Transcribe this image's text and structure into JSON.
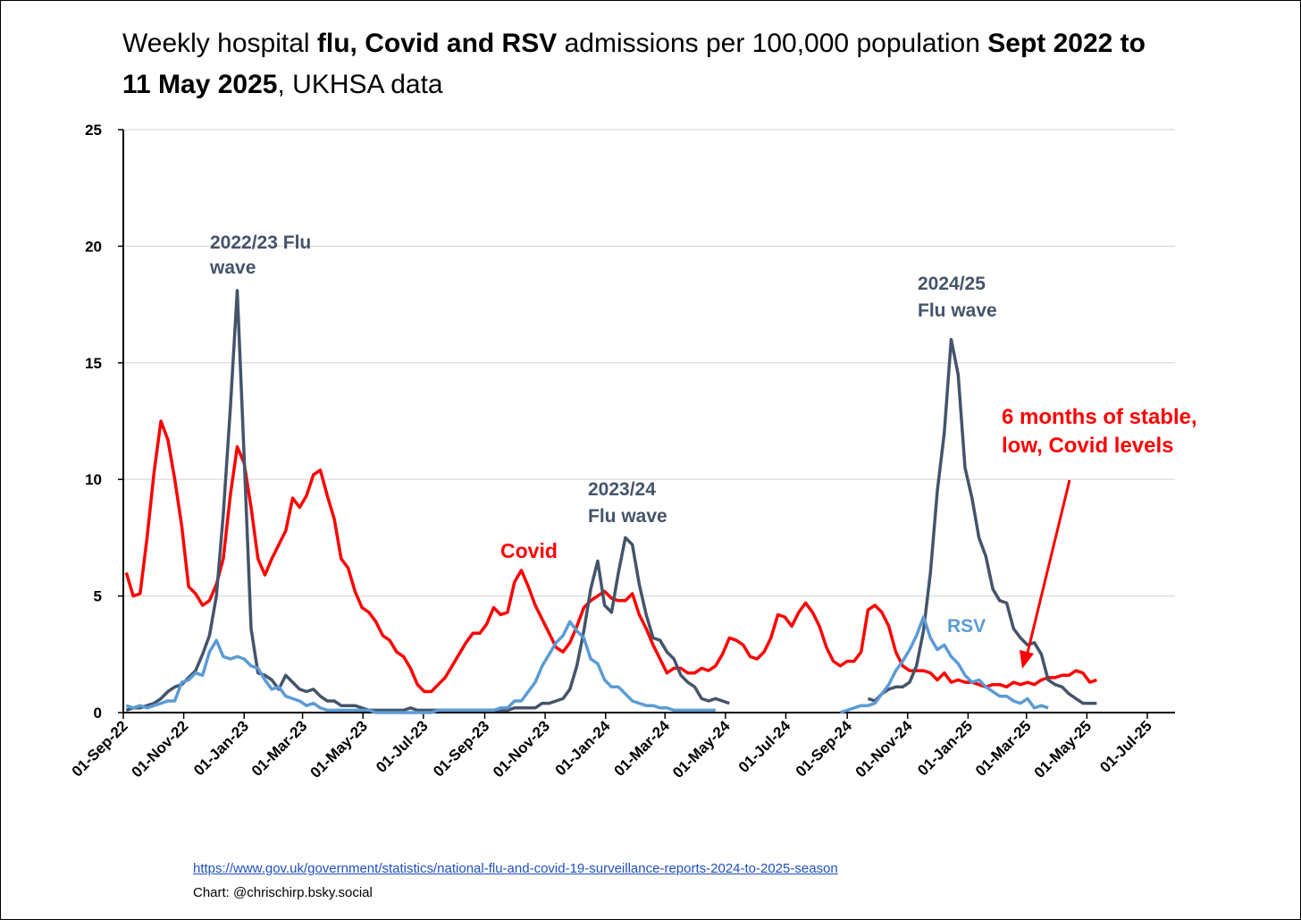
{
  "chart_data": {
    "type": "line",
    "title": [
      "Weekly hospital ",
      "flu, Covid and RSV",
      " admissions per 100,000 population ",
      "Sept 2022 to 11 May 2025",
      ", UKHSA data"
    ],
    "x": [
      "2022-09-04",
      "2022-09-11",
      "2022-09-18",
      "2022-09-25",
      "2022-10-02",
      "2022-10-09",
      "2022-10-16",
      "2022-10-23",
      "2022-10-30",
      "2022-11-06",
      "2022-11-13",
      "2022-11-20",
      "2022-11-27",
      "2022-12-04",
      "2022-12-11",
      "2022-12-18",
      "2022-12-25",
      "2023-01-01",
      "2023-01-08",
      "2023-01-15",
      "2023-01-22",
      "2023-01-29",
      "2023-02-05",
      "2023-02-12",
      "2023-02-19",
      "2023-02-26",
      "2023-03-05",
      "2023-03-12",
      "2023-03-19",
      "2023-03-26",
      "2023-04-02",
      "2023-04-09",
      "2023-04-16",
      "2023-04-23",
      "2023-04-30",
      "2023-05-07",
      "2023-05-14",
      "2023-05-21",
      "2023-05-28",
      "2023-06-04",
      "2023-06-11",
      "2023-06-18",
      "2023-06-25",
      "2023-07-02",
      "2023-07-09",
      "2023-07-16",
      "2023-07-23",
      "2023-07-30",
      "2023-08-06",
      "2023-08-13",
      "2023-08-20",
      "2023-08-27",
      "2023-09-03",
      "2023-09-10",
      "2023-09-17",
      "2023-09-24",
      "2023-10-01",
      "2023-10-08",
      "2023-10-15",
      "2023-10-22",
      "2023-10-29",
      "2023-11-05",
      "2023-11-12",
      "2023-11-19",
      "2023-11-26",
      "2023-12-03",
      "2023-12-10",
      "2023-12-17",
      "2023-12-24",
      "2023-12-31",
      "2024-01-07",
      "2024-01-14",
      "2024-01-21",
      "2024-01-28",
      "2024-02-04",
      "2024-02-11",
      "2024-02-18",
      "2024-02-25",
      "2024-03-03",
      "2024-03-10",
      "2024-03-17",
      "2024-03-24",
      "2024-03-31",
      "2024-04-07",
      "2024-04-14",
      "2024-04-21",
      "2024-04-28",
      "2024-05-05",
      "2024-05-12",
      "2024-05-19",
      "2024-05-26",
      "2024-06-02",
      "2024-06-09",
      "2024-06-16",
      "2024-06-23",
      "2024-06-30",
      "2024-07-07",
      "2024-07-14",
      "2024-07-21",
      "2024-07-28",
      "2024-08-04",
      "2024-08-11",
      "2024-08-18",
      "2024-08-25",
      "2024-09-01",
      "2024-09-08",
      "2024-09-15",
      "2024-09-22",
      "2024-09-29",
      "2024-10-06",
      "2024-10-13",
      "2024-10-20",
      "2024-10-27",
      "2024-11-03",
      "2024-11-10",
      "2024-11-17",
      "2024-11-24",
      "2024-12-01",
      "2024-12-08",
      "2024-12-15",
      "2024-12-22",
      "2024-12-29",
      "2025-01-05",
      "2025-01-12",
      "2025-01-19",
      "2025-01-26",
      "2025-02-02",
      "2025-02-09",
      "2025-02-16",
      "2025-02-23",
      "2025-03-02",
      "2025-03-09",
      "2025-03-16",
      "2025-03-23",
      "2025-03-30",
      "2025-04-06",
      "2025-04-13",
      "2025-04-20",
      "2025-04-27",
      "2025-05-04",
      "2025-05-11"
    ],
    "series": [
      {
        "name": "Covid",
        "color": "#ff0000",
        "values": [
          6.0,
          5.0,
          5.1,
          7.5,
          10.3,
          12.5,
          11.7,
          10.0,
          8.0,
          5.4,
          5.1,
          4.6,
          4.8,
          5.5,
          6.6,
          9.3,
          11.4,
          10.7,
          8.8,
          6.6,
          5.9,
          6.6,
          7.2,
          7.8,
          9.2,
          8.8,
          9.3,
          10.2,
          10.4,
          9.3,
          8.3,
          6.6,
          6.2,
          5.2,
          4.5,
          4.3,
          3.9,
          3.3,
          3.1,
          2.6,
          2.4,
          1.9,
          1.2,
          0.9,
          0.9,
          1.2,
          1.5,
          2.0,
          2.5,
          3.0,
          3.4,
          3.4,
          3.8,
          4.5,
          4.2,
          4.3,
          5.6,
          6.1,
          5.4,
          4.6,
          4.0,
          3.4,
          2.8,
          2.6,
          3.0,
          3.7,
          4.5,
          4.8,
          5.0,
          5.2,
          4.9,
          4.8,
          4.8,
          5.1,
          4.2,
          3.6,
          2.9,
          2.3,
          1.7,
          1.9,
          1.9,
          1.7,
          1.7,
          1.9,
          1.8,
          2.0,
          2.5,
          3.2,
          3.1,
          2.9,
          2.4,
          2.3,
          2.6,
          3.2,
          4.2,
          4.1,
          3.7,
          4.3,
          4.7,
          4.3,
          3.7,
          2.8,
          2.2,
          2.0,
          2.2,
          2.2,
          2.6,
          4.4,
          4.6,
          4.3,
          3.7,
          2.6,
          2.0,
          1.8,
          1.8,
          1.8,
          1.7,
          1.4,
          1.7,
          1.3,
          1.4,
          1.3,
          1.3,
          1.2,
          1.1,
          1.2,
          1.2,
          1.1,
          1.3,
          1.2,
          1.3,
          1.2,
          1.4,
          1.5,
          1.5,
          1.6,
          1.6,
          1.8,
          1.7,
          1.3,
          1.4
        ]
      },
      {
        "color": "#44546a",
        "values": [
          0.1,
          0.2,
          0.2,
          0.3,
          0.4,
          0.6,
          0.9,
          1.1,
          1.2,
          1.5,
          1.8,
          2.5,
          3.3,
          5.0,
          8.5,
          13.0,
          18.1,
          11.0,
          3.6,
          1.7,
          1.6,
          1.4,
          1.0,
          1.6,
          1.3,
          1.0,
          0.9,
          1.0,
          0.7,
          0.5,
          0.5,
          0.3,
          0.3,
          0.3,
          0.2,
          0.1,
          0.1,
          0.1,
          0.1,
          0.1,
          0.1,
          0.2,
          0.1,
          0.1,
          0.1,
          0.1,
          0.1,
          0.1,
          0.1,
          0.1,
          0.1,
          0.1,
          0.1,
          0.1,
          0.1,
          0.1,
          0.2,
          0.2,
          0.2,
          0.2,
          0.4,
          0.4,
          0.5,
          0.6,
          1.0,
          2.0,
          3.5,
          5.3,
          6.5,
          4.6,
          4.3,
          6.0,
          7.5,
          7.2,
          5.5,
          4.2,
          3.2,
          3.1,
          2.6,
          2.3,
          1.6,
          1.3,
          1.1,
          0.6,
          0.5,
          0.6,
          0.5,
          0.4,
          null,
          null,
          null,
          null,
          null,
          null,
          null,
          null,
          null,
          null,
          null,
          null,
          null,
          null,
          null,
          null,
          null,
          null,
          null,
          0.6,
          0.5,
          0.8,
          1.0,
          1.1,
          1.1,
          1.3,
          2.0,
          3.5,
          6.0,
          9.5,
          12.0,
          16.0,
          14.5,
          10.5,
          9.2,
          7.5,
          6.7,
          5.3,
          4.8,
          4.7,
          3.6,
          3.2,
          2.9,
          3.0,
          2.5,
          1.4,
          1.2,
          1.1,
          0.8,
          0.6,
          0.4,
          0.4,
          0.4
        ]
      },
      {
        "name": "RSV",
        "color": "#5b9bd5",
        "values": [
          0.3,
          0.2,
          0.3,
          0.2,
          0.3,
          0.4,
          0.5,
          0.5,
          1.3,
          1.4,
          1.7,
          1.6,
          2.6,
          3.1,
          2.4,
          2.3,
          2.4,
          2.3,
          2.0,
          1.9,
          1.4,
          1.0,
          1.1,
          0.7,
          0.6,
          0.5,
          0.3,
          0.4,
          0.2,
          0.1,
          0.1,
          0.1,
          0.1,
          0.1,
          0.1,
          0.1,
          0.0,
          0.0,
          0.0,
          0.0,
          0.0,
          0.0,
          0.0,
          0.0,
          0.0,
          0.1,
          0.1,
          0.1,
          0.1,
          0.1,
          0.1,
          0.1,
          0.1,
          0.1,
          0.2,
          0.2,
          0.5,
          0.5,
          0.9,
          1.3,
          2.0,
          2.5,
          3.0,
          3.3,
          3.9,
          3.5,
          3.2,
          2.3,
          2.1,
          1.4,
          1.1,
          1.1,
          0.8,
          0.5,
          0.4,
          0.3,
          0.3,
          0.2,
          0.2,
          0.1,
          0.1,
          0.1,
          0.1,
          0.1,
          0.1,
          0.1,
          null,
          null,
          null,
          null,
          null,
          null,
          null,
          null,
          null,
          null,
          null,
          null,
          null,
          null,
          null,
          null,
          null,
          0.0,
          0.1,
          0.2,
          0.3,
          0.3,
          0.4,
          0.8,
          1.2,
          1.8,
          2.2,
          2.7,
          3.3,
          4.1,
          3.2,
          2.7,
          2.9,
          2.4,
          2.1,
          1.6,
          1.3,
          1.4,
          1.1,
          0.9,
          0.7,
          0.7,
          0.5,
          0.4,
          0.6,
          0.2,
          0.3,
          0.2,
          null,
          null,
          null,
          null,
          null,
          null,
          null
        ]
      }
    ],
    "xlim": [
      "2022-09-01",
      "2025-07-29"
    ],
    "xticks": [
      {
        "value": "2022-09-01",
        "label": "01-Sep-22"
      },
      {
        "value": "2022-11-01",
        "label": "01-Nov-22"
      },
      {
        "value": "2023-01-01",
        "label": "01-Jan-23"
      },
      {
        "value": "2023-03-01",
        "label": "01-Mar-23"
      },
      {
        "value": "2023-05-01",
        "label": "01-May-23"
      },
      {
        "value": "2023-07-01",
        "label": "01-Jul-23"
      },
      {
        "value": "2023-09-01",
        "label": "01-Sep-23"
      },
      {
        "value": "2023-11-01",
        "label": "01-Nov-23"
      },
      {
        "value": "2024-01-01",
        "label": "01-Jan-24"
      },
      {
        "value": "2024-03-01",
        "label": "01-Mar-24"
      },
      {
        "value": "2024-05-01",
        "label": "01-May-24"
      },
      {
        "value": "2024-07-01",
        "label": "01-Jul-24"
      },
      {
        "value": "2024-09-01",
        "label": "01-Sep-24"
      },
      {
        "value": "2024-11-01",
        "label": "01-Nov-24"
      },
      {
        "value": "2025-01-01",
        "label": "01-Jan-25"
      },
      {
        "value": "2025-03-01",
        "label": "01-Mar-25"
      },
      {
        "value": "2025-05-01",
        "label": "01-May-25"
      },
      {
        "value": "2025-07-01",
        "label": "01-Jul-25"
      }
    ],
    "ylim": [
      0,
      25
    ],
    "yticks": [
      0,
      5,
      10,
      15,
      20,
      25
    ],
    "grid": true,
    "annotations": [
      {
        "lines": [
          "2022/23 Flu",
          "wave"
        ],
        "color": "#44546a"
      },
      {
        "lines": [
          "2023/24",
          "Flu wave"
        ],
        "color": "#44546a"
      },
      {
        "lines": [
          "2024/25",
          "Flu wave"
        ],
        "color": "#44546a"
      },
      {
        "lines": [
          "6 months of stable,",
          "low, Covid levels"
        ],
        "color": "#ff0000"
      }
    ],
    "source": {
      "url": "https://www.gov.uk/government/statistics/national-flu-and-covid-19-surveillance-reports-2024-to-2025-season",
      "credit": "Chart: @chrischirp.bsky.social"
    }
  }
}
